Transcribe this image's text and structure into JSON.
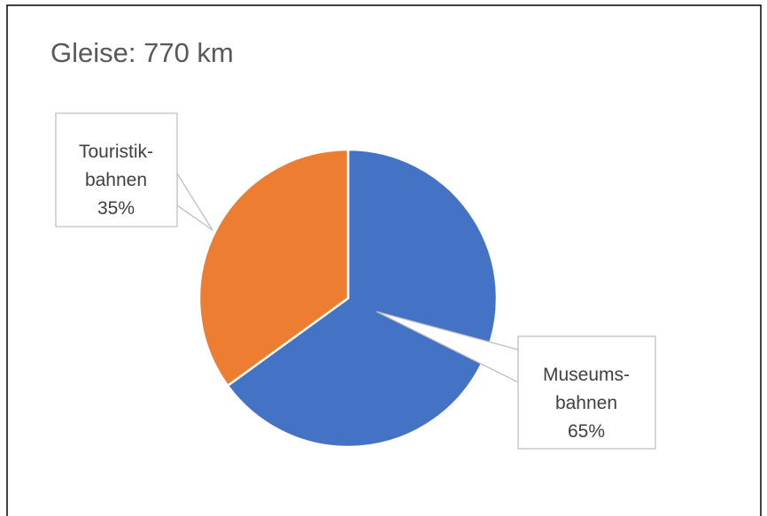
{
  "chart_data": {
    "type": "pie",
    "title": "Gleise: 770 km",
    "categories": [
      "Museums-\nbahnen",
      "Touristik-\nbahnen"
    ],
    "values": [
      65,
      35
    ],
    "value_labels": [
      "65%",
      "35%"
    ],
    "colors": [
      "#4472c4",
      "#ed7d31"
    ]
  }
}
